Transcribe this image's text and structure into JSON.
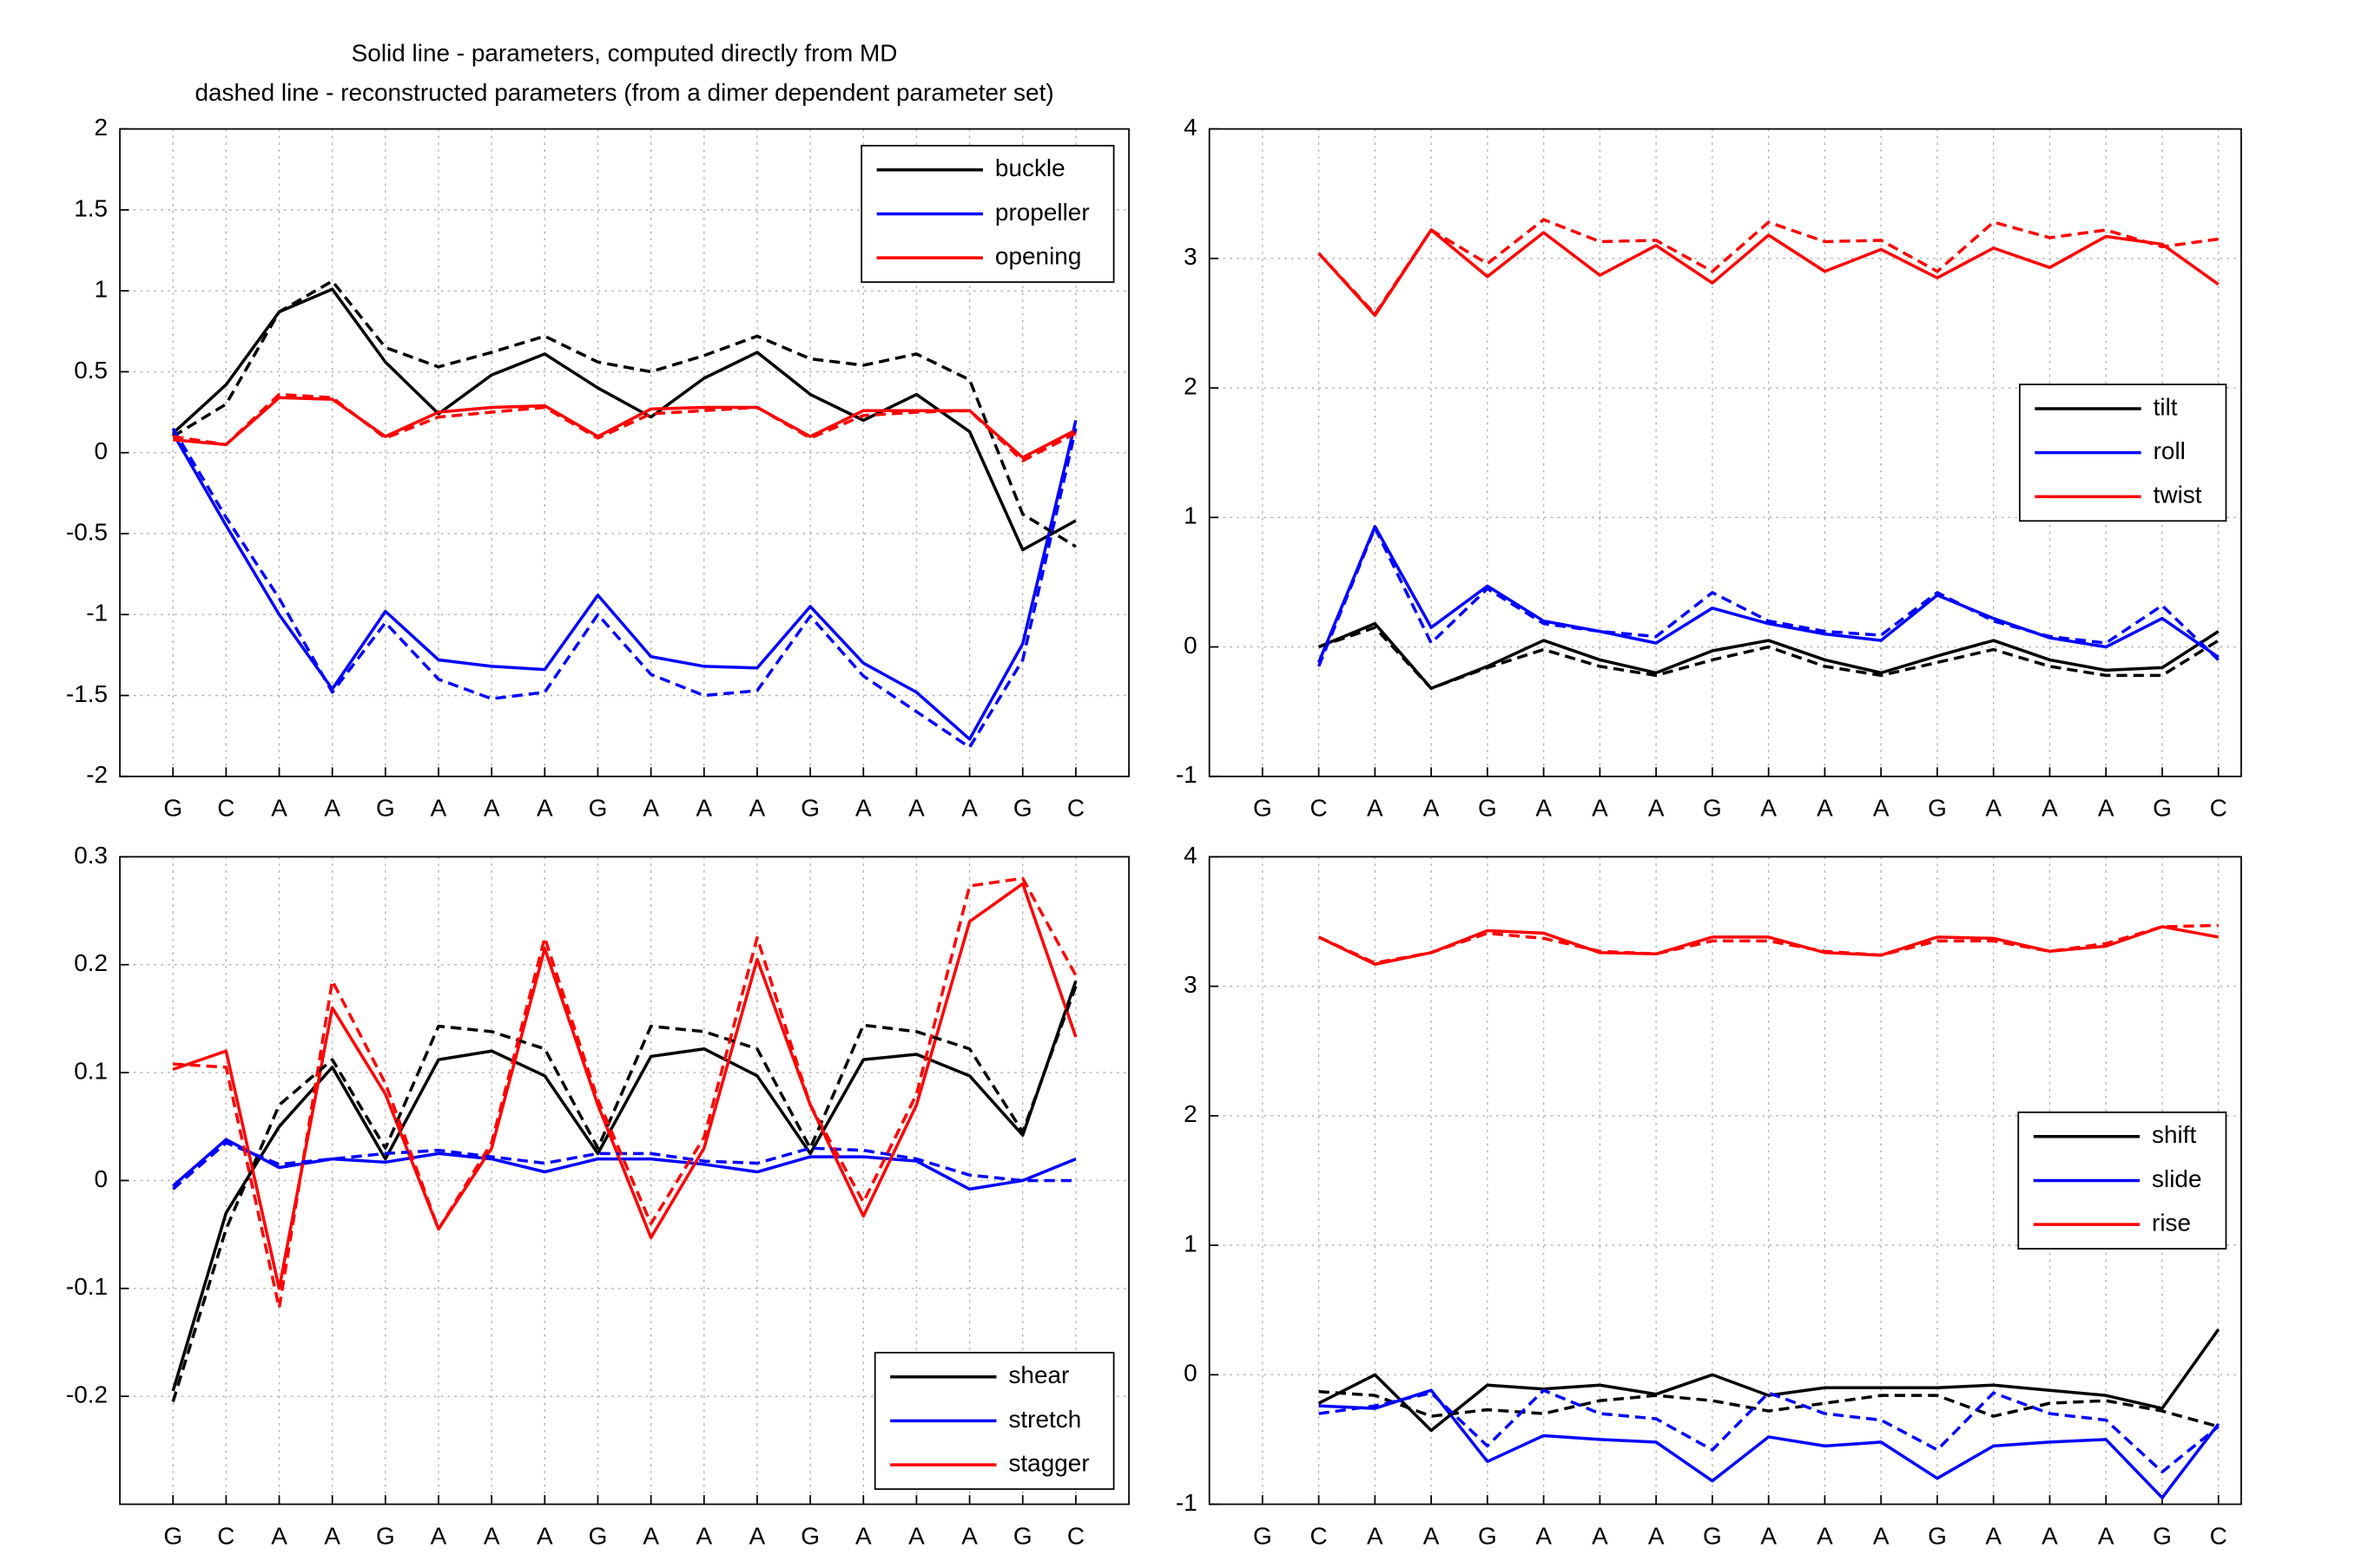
{
  "chart_data": [
    {
      "type": "line",
      "title": [
        "Solid line - parameters, computed directly from MD",
        "dashed line - reconstructed parameters (from a dimer dependent parameter set)"
      ],
      "categories": [
        "G",
        "C",
        "A",
        "A",
        "G",
        "A",
        "A",
        "A",
        "G",
        "A",
        "A",
        "A",
        "G",
        "A",
        "A",
        "A",
        "G",
        "C"
      ],
      "ylim": [
        -2,
        2
      ],
      "yticks": [
        -2,
        -1.5,
        -1,
        -0.5,
        0,
        0.5,
        1,
        1.5,
        2
      ],
      "grid": true,
      "legend": "northeast",
      "series": [
        {
          "name": "buckle",
          "color": "#000000",
          "values": [
            0.12,
            0.42,
            0.87,
            1.01,
            0.56,
            0.24,
            0.48,
            0.61,
            0.4,
            0.22,
            0.46,
            0.62,
            0.36,
            0.2,
            0.36,
            0.13,
            -0.6,
            -0.42
          ]
        },
        {
          "name": "propeller",
          "color": "#0000ff",
          "values": [
            0.12,
            -0.45,
            -1.0,
            -1.46,
            -0.98,
            -1.28,
            -1.32,
            -1.34,
            -0.88,
            -1.26,
            -1.32,
            -1.33,
            -0.95,
            -1.3,
            -1.48,
            -1.77,
            -1.18,
            0.2
          ]
        },
        {
          "name": "opening",
          "color": "#ff0000",
          "values": [
            0.08,
            0.05,
            0.34,
            0.33,
            0.1,
            0.25,
            0.28,
            0.29,
            0.1,
            0.27,
            0.28,
            0.28,
            0.1,
            0.26,
            0.26,
            0.26,
            -0.03,
            0.14
          ]
        },
        {
          "color": "#000000",
          "dashed": true,
          "values": [
            0.1,
            0.3,
            0.87,
            1.06,
            0.65,
            0.53,
            0.62,
            0.72,
            0.56,
            0.5,
            0.6,
            0.72,
            0.58,
            0.54,
            0.61,
            0.45,
            -0.38,
            -0.58
          ]
        },
        {
          "color": "#0000ff",
          "dashed": true,
          "values": [
            0.15,
            -0.4,
            -0.9,
            -1.48,
            -1.05,
            -1.4,
            -1.52,
            -1.48,
            -1.0,
            -1.37,
            -1.5,
            -1.47,
            -1.01,
            -1.38,
            -1.6,
            -1.82,
            -1.28,
            0.15
          ]
        },
        {
          "color": "#ff0000",
          "dashed": true,
          "values": [
            0.1,
            0.05,
            0.36,
            0.34,
            0.09,
            0.22,
            0.25,
            0.28,
            0.09,
            0.24,
            0.26,
            0.28,
            0.09,
            0.23,
            0.25,
            0.26,
            -0.05,
            0.12
          ]
        }
      ]
    },
    {
      "type": "line",
      "categories": [
        "G",
        "C",
        "A",
        "A",
        "G",
        "A",
        "A",
        "A",
        "G",
        "A",
        "A",
        "A",
        "G",
        "A",
        "A",
        "A",
        "G",
        "C"
      ],
      "ylim": [
        -1,
        4
      ],
      "yticks": [
        -1,
        0,
        1,
        2,
        3,
        4
      ],
      "grid": true,
      "legend": "east",
      "series": [
        {
          "name": "tilt",
          "color": "#000000",
          "values": [
            null,
            0.0,
            0.18,
            -0.32,
            -0.15,
            0.05,
            -0.1,
            -0.2,
            -0.03,
            0.05,
            -0.1,
            -0.2,
            -0.07,
            0.05,
            -0.1,
            -0.18,
            -0.16,
            0.12
          ]
        },
        {
          "name": "roll",
          "color": "#0000ff",
          "values": [
            null,
            -0.12,
            0.93,
            0.15,
            0.47,
            0.2,
            0.12,
            0.03,
            0.3,
            0.18,
            0.1,
            0.05,
            0.4,
            0.22,
            0.07,
            0.0,
            0.22,
            -0.08
          ]
        },
        {
          "name": "twist",
          "color": "#ff0000",
          "values": [
            null,
            3.04,
            2.56,
            3.22,
            2.86,
            3.2,
            2.87,
            3.1,
            2.81,
            3.18,
            2.9,
            3.07,
            2.85,
            3.08,
            2.93,
            3.17,
            3.11,
            2.8
          ]
        },
        {
          "color": "#000000",
          "dashed": true,
          "values": [
            null,
            0.0,
            0.15,
            -0.32,
            -0.16,
            -0.02,
            -0.15,
            -0.22,
            -0.1,
            0.0,
            -0.15,
            -0.22,
            -0.12,
            -0.02,
            -0.15,
            -0.22,
            -0.22,
            0.05
          ]
        },
        {
          "color": "#0000ff",
          "dashed": true,
          "values": [
            null,
            -0.15,
            0.92,
            0.03,
            0.45,
            0.18,
            0.12,
            0.08,
            0.42,
            0.2,
            0.12,
            0.09,
            0.42,
            0.2,
            0.08,
            0.03,
            0.32,
            -0.1
          ]
        },
        {
          "color": "#ff0000",
          "dashed": true,
          "values": [
            null,
            3.04,
            2.57,
            3.22,
            2.96,
            3.3,
            3.13,
            3.14,
            2.9,
            3.28,
            3.13,
            3.14,
            2.9,
            3.28,
            3.16,
            3.22,
            3.09,
            3.15
          ]
        }
      ]
    },
    {
      "type": "line",
      "categories": [
        "G",
        "C",
        "A",
        "A",
        "G",
        "A",
        "A",
        "A",
        "G",
        "A",
        "A",
        "A",
        "G",
        "A",
        "A",
        "A",
        "G",
        "C"
      ],
      "ylim": [
        -0.3,
        0.3
      ],
      "yticks": [
        -0.2,
        -0.1,
        0,
        0.1,
        0.2,
        0.3
      ],
      "grid": true,
      "legend": "southeast",
      "series": [
        {
          "name": "shear",
          "color": "#000000",
          "values": [
            -0.195,
            -0.03,
            0.05,
            0.105,
            0.02,
            0.112,
            0.12,
            0.097,
            0.025,
            0.115,
            0.122,
            0.097,
            0.025,
            0.112,
            0.117,
            0.097,
            0.042,
            0.185
          ]
        },
        {
          "name": "stretch",
          "color": "#0000ff",
          "values": [
            -0.005,
            0.038,
            0.012,
            0.02,
            0.017,
            0.025,
            0.02,
            0.008,
            0.02,
            0.02,
            0.015,
            0.008,
            0.022,
            0.022,
            0.018,
            -0.008,
            0.0,
            0.02
          ]
        },
        {
          "name": "stagger",
          "color": "#ff0000",
          "values": [
            0.103,
            0.12,
            -0.1,
            0.16,
            0.08,
            -0.045,
            0.03,
            0.215,
            0.07,
            -0.053,
            0.03,
            0.205,
            0.07,
            -0.033,
            0.07,
            0.24,
            0.275,
            0.133
          ]
        },
        {
          "color": "#000000",
          "dashed": true,
          "values": [
            -0.205,
            -0.045,
            0.07,
            0.112,
            0.03,
            0.143,
            0.138,
            0.122,
            0.03,
            0.143,
            0.138,
            0.122,
            0.03,
            0.144,
            0.138,
            0.122,
            0.045,
            0.18
          ]
        },
        {
          "color": "#0000ff",
          "dashed": true,
          "values": [
            -0.008,
            0.035,
            0.015,
            0.02,
            0.025,
            0.028,
            0.022,
            0.016,
            0.025,
            0.025,
            0.018,
            0.016,
            0.03,
            0.028,
            0.02,
            0.005,
            0.0,
            0.0
          ]
        },
        {
          "color": "#ff0000",
          "dashed": true,
          "values": [
            0.108,
            0.105,
            -0.118,
            0.185,
            0.09,
            -0.045,
            0.035,
            0.225,
            0.075,
            -0.04,
            0.04,
            0.225,
            0.07,
            -0.02,
            0.08,
            0.273,
            0.28,
            0.19
          ]
        }
      ]
    },
    {
      "type": "line",
      "categories": [
        "G",
        "C",
        "A",
        "A",
        "G",
        "A",
        "A",
        "A",
        "G",
        "A",
        "A",
        "A",
        "G",
        "A",
        "A",
        "A",
        "G",
        "C"
      ],
      "ylim": [
        -1,
        4
      ],
      "yticks": [
        -1,
        0,
        1,
        2,
        3,
        4
      ],
      "grid": true,
      "legend": "east",
      "series": [
        {
          "name": "shift",
          "color": "#000000",
          "values": [
            null,
            -0.22,
            0.0,
            -0.43,
            -0.08,
            -0.11,
            -0.08,
            -0.15,
            0.0,
            -0.16,
            -0.1,
            -0.1,
            -0.1,
            -0.08,
            -0.12,
            -0.16,
            -0.26,
            0.35
          ]
        },
        {
          "name": "slide",
          "color": "#0000ff",
          "values": [
            null,
            -0.24,
            -0.26,
            -0.12,
            -0.67,
            -0.47,
            -0.5,
            -0.52,
            -0.82,
            -0.48,
            -0.55,
            -0.52,
            -0.8,
            -0.55,
            -0.52,
            -0.5,
            -0.95,
            -0.38
          ]
        },
        {
          "name": "rise",
          "color": "#ff0000",
          "values": [
            null,
            3.38,
            3.17,
            3.26,
            3.43,
            3.41,
            3.26,
            3.25,
            3.38,
            3.38,
            3.26,
            3.24,
            3.38,
            3.37,
            3.27,
            3.31,
            3.46,
            3.38
          ]
        },
        {
          "color": "#000000",
          "dashed": true,
          "values": [
            null,
            -0.13,
            -0.16,
            -0.32,
            -0.27,
            -0.3,
            -0.2,
            -0.16,
            -0.2,
            -0.28,
            -0.22,
            -0.16,
            -0.16,
            -0.32,
            -0.22,
            -0.2,
            -0.28,
            -0.4
          ]
        },
        {
          "color": "#0000ff",
          "dashed": true,
          "values": [
            null,
            -0.3,
            -0.24,
            -0.14,
            -0.55,
            -0.12,
            -0.3,
            -0.34,
            -0.58,
            -0.14,
            -0.3,
            -0.35,
            -0.58,
            -0.14,
            -0.3,
            -0.35,
            -0.75,
            -0.4
          ]
        },
        {
          "color": "#ff0000",
          "dashed": true,
          "values": [
            null,
            3.38,
            3.18,
            3.26,
            3.41,
            3.37,
            3.27,
            3.25,
            3.35,
            3.35,
            3.27,
            3.24,
            3.35,
            3.35,
            3.27,
            3.33,
            3.46,
            3.47
          ]
        }
      ]
    }
  ]
}
